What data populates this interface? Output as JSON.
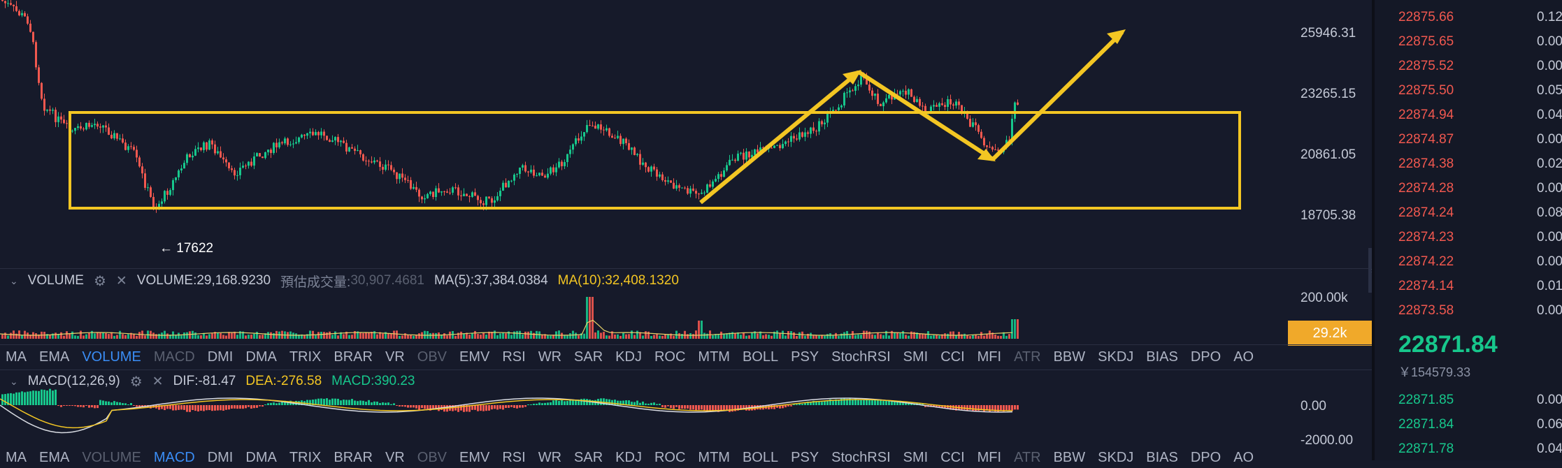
{
  "price_axis": [
    "25946.31",
    "23265.15",
    "20861.05",
    "18705.38"
  ],
  "low_marker": "← 17622",
  "volume_header": {
    "name": "VOLUME",
    "value": "VOLUME:29,168.9230",
    "est_label": "預估成交量:",
    "est_value": "30,907.4681",
    "ma5": "MA(5):37,384.0384",
    "ma10": "MA(10):32,408.1320",
    "ma10_color": "#f3c623",
    "est_color": "#5a6070"
  },
  "volume_axis": "200.00k",
  "volume_badge": "29.2k",
  "indicator_tabs": [
    "MA",
    "EMA",
    "VOLUME",
    "MACD",
    "DMI",
    "DMA",
    "TRIX",
    "BRAR",
    "VR",
    "OBV",
    "EMV",
    "RSI",
    "WR",
    "SAR",
    "KDJ",
    "ROC",
    "MTM",
    "BOLL",
    "PSY",
    "StochRSI",
    "SMI",
    "CCI",
    "MFI",
    "ATR",
    "BBW",
    "SKDJ",
    "BIAS",
    "DPO",
    "AO"
  ],
  "indicator_tabs_active_row1": "VOLUME",
  "indicator_tabs_active_row2": "MACD",
  "macd_header": {
    "name": "MACD(12,26,9)",
    "dif": "DIF:-81.47",
    "dea": "DEA:-276.58",
    "macd": "MACD:390.23",
    "dea_color": "#f3c623",
    "macd_color": "#17c78c"
  },
  "macd_axis": [
    "0.00",
    "-2000.00"
  ],
  "order_book": {
    "asks": [
      {
        "price": "22875.66",
        "qty": "0.12"
      },
      {
        "price": "22875.65",
        "qty": "0.00"
      },
      {
        "price": "22875.52",
        "qty": "0.00"
      },
      {
        "price": "22875.50",
        "qty": "0.05"
      },
      {
        "price": "22874.94",
        "qty": "0.04"
      },
      {
        "price": "22874.87",
        "qty": "0.00"
      },
      {
        "price": "22874.38",
        "qty": "0.02"
      },
      {
        "price": "22874.28",
        "qty": "0.00"
      },
      {
        "price": "22874.24",
        "qty": "0.08"
      },
      {
        "price": "22874.23",
        "qty": "0.00"
      },
      {
        "price": "22874.22",
        "qty": "0.00"
      },
      {
        "price": "22874.14",
        "qty": "0.01"
      },
      {
        "price": "22873.58",
        "qty": "0.00"
      }
    ],
    "last_price": "22871.84",
    "last_price_fiat": "￥154579.33",
    "bids": [
      {
        "price": "22871.85",
        "qty": "0.00"
      },
      {
        "price": "22871.84",
        "qty": "0.06"
      },
      {
        "price": "22871.78",
        "qty": "0.04"
      }
    ]
  },
  "colors": {
    "background": "#161a2a",
    "up": "#17c78c",
    "down": "#f1584f",
    "annotation": "#f3c623",
    "active_tab": "#3a8df5"
  }
}
